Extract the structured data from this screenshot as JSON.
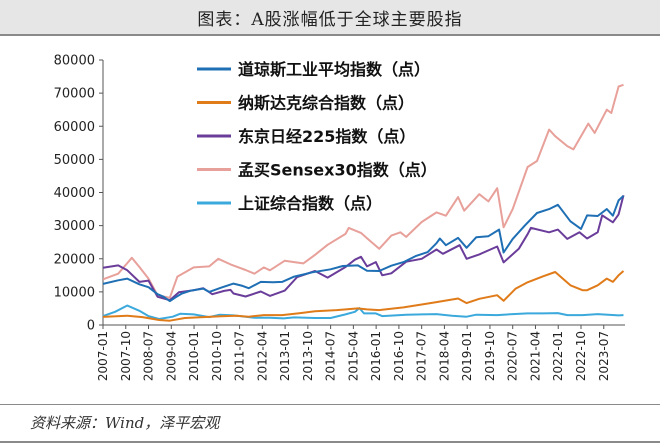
{
  "title": "图表：A股涨幅低于全球主要股指",
  "source": "资料来源：Wind，泽平宏观",
  "chart_data": {
    "type": "line",
    "ylim": [
      0,
      80000
    ],
    "yticks": [
      "0",
      "10000",
      "20000",
      "30000",
      "40000",
      "50000",
      "60000",
      "70000",
      "80000"
    ],
    "xticks": [
      "2007-01",
      "2007-10",
      "2008-07",
      "2009-04",
      "2010-01",
      "2010-10",
      "2011-07",
      "2012-04",
      "2013-01",
      "2013-10",
      "2014-07",
      "2015-04",
      "2016-01",
      "2016-10",
      "2017-07",
      "2018-04",
      "2019-01",
      "2019-10",
      "2020-07",
      "2021-04",
      "2022-01",
      "2022-10",
      "2023-07"
    ],
    "xrange": [
      2007.0,
      2024.2
    ],
    "grid": false,
    "legend_position": "top-left",
    "series": [
      {
        "name": "道琼斯工业平均指数（点）",
        "color": "#1f6fb4",
        "points": [
          [
            2007.0,
            12400
          ],
          [
            2007.5,
            13500
          ],
          [
            2007.8,
            14000
          ],
          [
            2008.2,
            12300
          ],
          [
            2008.5,
            11400
          ],
          [
            2008.8,
            9300
          ],
          [
            2009.0,
            8500
          ],
          [
            2009.2,
            7200
          ],
          [
            2009.4,
            8400
          ],
          [
            2009.6,
            9500
          ],
          [
            2009.9,
            10400
          ],
          [
            2010.3,
            11000
          ],
          [
            2010.5,
            10000
          ],
          [
            2010.9,
            11300
          ],
          [
            2011.3,
            12500
          ],
          [
            2011.6,
            11800
          ],
          [
            2011.8,
            11100
          ],
          [
            2012.2,
            13000
          ],
          [
            2012.6,
            12900
          ],
          [
            2012.9,
            13000
          ],
          [
            2013.3,
            14600
          ],
          [
            2013.9,
            15900
          ],
          [
            2014.5,
            16800
          ],
          [
            2014.9,
            17800
          ],
          [
            2015.4,
            18000
          ],
          [
            2015.7,
            16400
          ],
          [
            2016.1,
            16300
          ],
          [
            2016.5,
            17900
          ],
          [
            2016.9,
            19000
          ],
          [
            2017.3,
            20800
          ],
          [
            2017.7,
            22000
          ],
          [
            2017.99,
            24700
          ],
          [
            2018.1,
            26100
          ],
          [
            2018.3,
            24100
          ],
          [
            2018.7,
            26300
          ],
          [
            2018.98,
            23300
          ],
          [
            2019.3,
            26500
          ],
          [
            2019.7,
            26800
          ],
          [
            2020.05,
            28800
          ],
          [
            2020.2,
            21900
          ],
          [
            2020.5,
            26000
          ],
          [
            2020.9,
            30000
          ],
          [
            2021.3,
            33800
          ],
          [
            2021.7,
            35000
          ],
          [
            2021.99,
            36300
          ],
          [
            2022.4,
            31300
          ],
          [
            2022.75,
            29000
          ],
          [
            2022.95,
            33100
          ],
          [
            2023.3,
            32900
          ],
          [
            2023.6,
            35000
          ],
          [
            2023.8,
            33000
          ],
          [
            2023.99,
            37600
          ],
          [
            2024.15,
            39000
          ]
        ]
      },
      {
        "name": "纳斯达克综合指数（点）",
        "color": "#e07b1a",
        "points": [
          [
            2007.0,
            2450
          ],
          [
            2007.8,
            2800
          ],
          [
            2008.3,
            2400
          ],
          [
            2008.85,
            1500
          ],
          [
            2009.2,
            1300
          ],
          [
            2009.7,
            2100
          ],
          [
            2010.3,
            2400
          ],
          [
            2010.9,
            2650
          ],
          [
            2011.4,
            2800
          ],
          [
            2011.8,
            2500
          ],
          [
            2012.3,
            3000
          ],
          [
            2012.9,
            3000
          ],
          [
            2013.5,
            3600
          ],
          [
            2013.99,
            4150
          ],
          [
            2014.7,
            4500
          ],
          [
            2015.4,
            5000
          ],
          [
            2015.7,
            4700
          ],
          [
            2016.1,
            4500
          ],
          [
            2016.9,
            5300
          ],
          [
            2017.5,
            6200
          ],
          [
            2017.99,
            6900
          ],
          [
            2018.7,
            8000
          ],
          [
            2018.98,
            6600
          ],
          [
            2019.4,
            7900
          ],
          [
            2019.99,
            9000
          ],
          [
            2020.2,
            7300
          ],
          [
            2020.6,
            11000
          ],
          [
            2020.99,
            12900
          ],
          [
            2021.5,
            14700
          ],
          [
            2021.9,
            16000
          ],
          [
            2022.4,
            12000
          ],
          [
            2022.8,
            10500
          ],
          [
            2022.95,
            10500
          ],
          [
            2023.3,
            12000
          ],
          [
            2023.6,
            14000
          ],
          [
            2023.8,
            13000
          ],
          [
            2023.99,
            15000
          ],
          [
            2024.15,
            16300
          ]
        ]
      },
      {
        "name": "东京日经225指数（点）",
        "color": "#6a3d9a",
        "points": [
          [
            2007.0,
            17300
          ],
          [
            2007.5,
            18000
          ],
          [
            2007.8,
            16500
          ],
          [
            2008.2,
            13000
          ],
          [
            2008.5,
            13400
          ],
          [
            2008.8,
            8500
          ],
          [
            2009.2,
            7500
          ],
          [
            2009.5,
            9900
          ],
          [
            2009.99,
            10500
          ],
          [
            2010.3,
            11100
          ],
          [
            2010.6,
            9300
          ],
          [
            2010.99,
            10300
          ],
          [
            2011.2,
            10600
          ],
          [
            2011.3,
            9500
          ],
          [
            2011.7,
            8600
          ],
          [
            2012.2,
            10100
          ],
          [
            2012.5,
            8800
          ],
          [
            2012.99,
            10400
          ],
          [
            2013.4,
            14500
          ],
          [
            2013.99,
            16300
          ],
          [
            2014.4,
            14300
          ],
          [
            2014.99,
            17500
          ],
          [
            2015.3,
            19700
          ],
          [
            2015.5,
            20600
          ],
          [
            2015.7,
            17700
          ],
          [
            2015.99,
            19000
          ],
          [
            2016.2,
            15000
          ],
          [
            2016.5,
            15600
          ],
          [
            2016.99,
            19100
          ],
          [
            2017.5,
            20000
          ],
          [
            2017.99,
            22800
          ],
          [
            2018.2,
            21500
          ],
          [
            2018.75,
            24100
          ],
          [
            2018.98,
            20000
          ],
          [
            2019.4,
            21300
          ],
          [
            2019.99,
            23700
          ],
          [
            2020.2,
            18900
          ],
          [
            2020.7,
            23000
          ],
          [
            2020.99,
            27400
          ],
          [
            2021.1,
            29300
          ],
          [
            2021.7,
            28000
          ],
          [
            2021.99,
            28800
          ],
          [
            2022.3,
            26000
          ],
          [
            2022.7,
            28000
          ],
          [
            2022.95,
            26100
          ],
          [
            2023.3,
            28000
          ],
          [
            2023.45,
            33100
          ],
          [
            2023.8,
            31000
          ],
          [
            2023.99,
            33400
          ],
          [
            2024.15,
            39200
          ]
        ]
      },
      {
        "name": "孟买Sensex30指数（点）",
        "color": "#e8a09a",
        "points": [
          [
            2007.0,
            13800
          ],
          [
            2007.5,
            15500
          ],
          [
            2007.95,
            20300
          ],
          [
            2008.2,
            17500
          ],
          [
            2008.5,
            14000
          ],
          [
            2008.8,
            9000
          ],
          [
            2009.2,
            8200
          ],
          [
            2009.45,
            14600
          ],
          [
            2009.99,
            17400
          ],
          [
            2010.5,
            17700
          ],
          [
            2010.8,
            20000
          ],
          [
            2011.2,
            18300
          ],
          [
            2011.7,
            16600
          ],
          [
            2011.99,
            15500
          ],
          [
            2012.3,
            17400
          ],
          [
            2012.5,
            16500
          ],
          [
            2012.99,
            19400
          ],
          [
            2013.3,
            19000
          ],
          [
            2013.6,
            18600
          ],
          [
            2013.99,
            21200
          ],
          [
            2014.4,
            24200
          ],
          [
            2014.99,
            27500
          ],
          [
            2015.1,
            29300
          ],
          [
            2015.5,
            27800
          ],
          [
            2015.7,
            26200
          ],
          [
            2016.1,
            23000
          ],
          [
            2016.5,
            27000
          ],
          [
            2016.8,
            28000
          ],
          [
            2016.99,
            26600
          ],
          [
            2017.5,
            31100
          ],
          [
            2017.99,
            34000
          ],
          [
            2018.3,
            33000
          ],
          [
            2018.7,
            38600
          ],
          [
            2018.9,
            34500
          ],
          [
            2019.4,
            39500
          ],
          [
            2019.7,
            37300
          ],
          [
            2019.99,
            41300
          ],
          [
            2020.2,
            29500
          ],
          [
            2020.5,
            35000
          ],
          [
            2020.99,
            47700
          ],
          [
            2021.3,
            49500
          ],
          [
            2021.7,
            59000
          ],
          [
            2021.9,
            57000
          ],
          [
            2022.3,
            54000
          ],
          [
            2022.5,
            53000
          ],
          [
            2022.99,
            60800
          ],
          [
            2023.2,
            58000
          ],
          [
            2023.6,
            65000
          ],
          [
            2023.75,
            64000
          ],
          [
            2023.99,
            72000
          ],
          [
            2024.15,
            72500
          ]
        ]
      },
      {
        "name": "上证综合指数（点）",
        "color": "#3ba9dc",
        "points": [
          [
            2007.0,
            2700
          ],
          [
            2007.4,
            4000
          ],
          [
            2007.8,
            5900
          ],
          [
            2008.2,
            4300
          ],
          [
            2008.5,
            2700
          ],
          [
            2008.85,
            1800
          ],
          [
            2009.3,
            2500
          ],
          [
            2009.55,
            3400
          ],
          [
            2009.99,
            3200
          ],
          [
            2010.5,
            2400
          ],
          [
            2010.85,
            3100
          ],
          [
            2011.3,
            2900
          ],
          [
            2011.99,
            2200
          ],
          [
            2012.5,
            2200
          ],
          [
            2012.95,
            2000
          ],
          [
            2013.3,
            2300
          ],
          [
            2013.99,
            2100
          ],
          [
            2014.5,
            2100
          ],
          [
            2014.99,
            3200
          ],
          [
            2015.3,
            4000
          ],
          [
            2015.45,
            5100
          ],
          [
            2015.6,
            3500
          ],
          [
            2015.99,
            3500
          ],
          [
            2016.2,
            2700
          ],
          [
            2016.99,
            3100
          ],
          [
            2017.5,
            3200
          ],
          [
            2017.99,
            3300
          ],
          [
            2018.5,
            2800
          ],
          [
            2018.98,
            2500
          ],
          [
            2019.3,
            3100
          ],
          [
            2019.99,
            3000
          ],
          [
            2020.5,
            3300
          ],
          [
            2020.99,
            3500
          ],
          [
            2021.5,
            3500
          ],
          [
            2021.99,
            3600
          ],
          [
            2022.3,
            3000
          ],
          [
            2022.8,
            3000
          ],
          [
            2023.3,
            3300
          ],
          [
            2023.99,
            2900
          ],
          [
            2024.15,
            3000
          ]
        ]
      }
    ]
  }
}
